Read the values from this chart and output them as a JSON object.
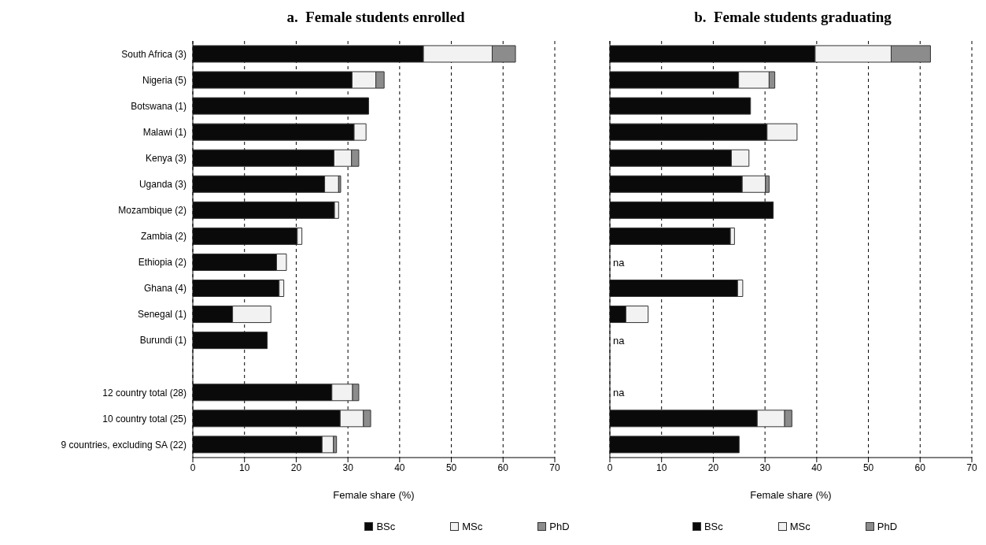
{
  "chart_data": [
    {
      "type": "bar",
      "orientation": "horizontal",
      "stacked": true,
      "title": "a.  Female students enrolled",
      "xlabel": "Female share (%)",
      "categories": [
        "South Africa (3)",
        "Nigeria (5)",
        "Botswana (1)",
        "Malawi (1)",
        "Kenya (3)",
        "Uganda (3)",
        "Mozambique (2)",
        "Zambia (2)",
        "Ethiopia (2)",
        "Ghana (4)",
        "Senegal (1)",
        "Burundi (1)",
        null,
        "12 country total (28)",
        "10 country total (25)",
        "9 countries, excluding SA (22)"
      ],
      "series": [
        {
          "name": "BSc",
          "color": "#0a0a0a",
          "values": [
            44.6,
            30.8,
            34.0,
            31.2,
            27.3,
            25.5,
            27.4,
            20.2,
            16.2,
            16.7,
            7.7,
            14.4,
            null,
            26.9,
            28.5,
            25.0
          ]
        },
        {
          "name": "MSc",
          "color": "#f2f2f2",
          "values": [
            13.3,
            4.6,
            null,
            2.3,
            3.4,
            2.7,
            0.8,
            0.9,
            1.9,
            0.9,
            7.4,
            null,
            null,
            4.0,
            4.5,
            2.2
          ]
        },
        {
          "name": "PhD",
          "color": "#8c8c8c",
          "values": [
            4.5,
            1.6,
            null,
            null,
            1.4,
            0.4,
            null,
            null,
            null,
            null,
            null,
            null,
            null,
            1.2,
            1.4,
            0.6
          ]
        }
      ],
      "xlim": [
        0,
        70
      ],
      "xticks": [
        0,
        10,
        20,
        30,
        40,
        50,
        60,
        70
      ],
      "grid": "x",
      "legend": "bottom"
    },
    {
      "type": "bar",
      "orientation": "horizontal",
      "stacked": true,
      "title": "b.  Female students graduating",
      "xlabel": "Female share (%)",
      "categories": [
        null,
        null,
        null,
        null,
        null,
        null,
        null,
        null,
        null,
        null,
        null,
        null,
        null,
        null,
        null,
        null
      ],
      "series": [
        {
          "name": "BSc",
          "color": "#0a0a0a",
          "values": [
            39.7,
            24.9,
            27.2,
            30.4,
            23.5,
            25.6,
            31.6,
            23.3,
            null,
            24.7,
            3.1,
            null,
            null,
            null,
            28.5,
            25.0
          ],
          "value_labels": [
            null,
            null,
            null,
            null,
            null,
            null,
            null,
            null,
            "na",
            null,
            null,
            "na",
            null,
            "na",
            null,
            null
          ]
        },
        {
          "name": "MSc",
          "color": "#f2f2f2",
          "values": [
            14.7,
            5.9,
            null,
            5.8,
            3.4,
            4.5,
            null,
            0.8,
            null,
            1.0,
            4.3,
            null,
            null,
            null,
            5.3,
            null
          ]
        },
        {
          "name": "PhD",
          "color": "#8c8c8c",
          "values": [
            7.6,
            1.1,
            null,
            null,
            null,
            0.7,
            null,
            null,
            null,
            null,
            null,
            null,
            null,
            null,
            1.4,
            null
          ]
        }
      ],
      "xlim": [
        0,
        70
      ],
      "xticks": [
        0,
        10,
        20,
        30,
        40,
        50,
        60,
        70
      ],
      "grid": "x",
      "legend": "bottom",
      "tick_labels": "x"
    }
  ]
}
